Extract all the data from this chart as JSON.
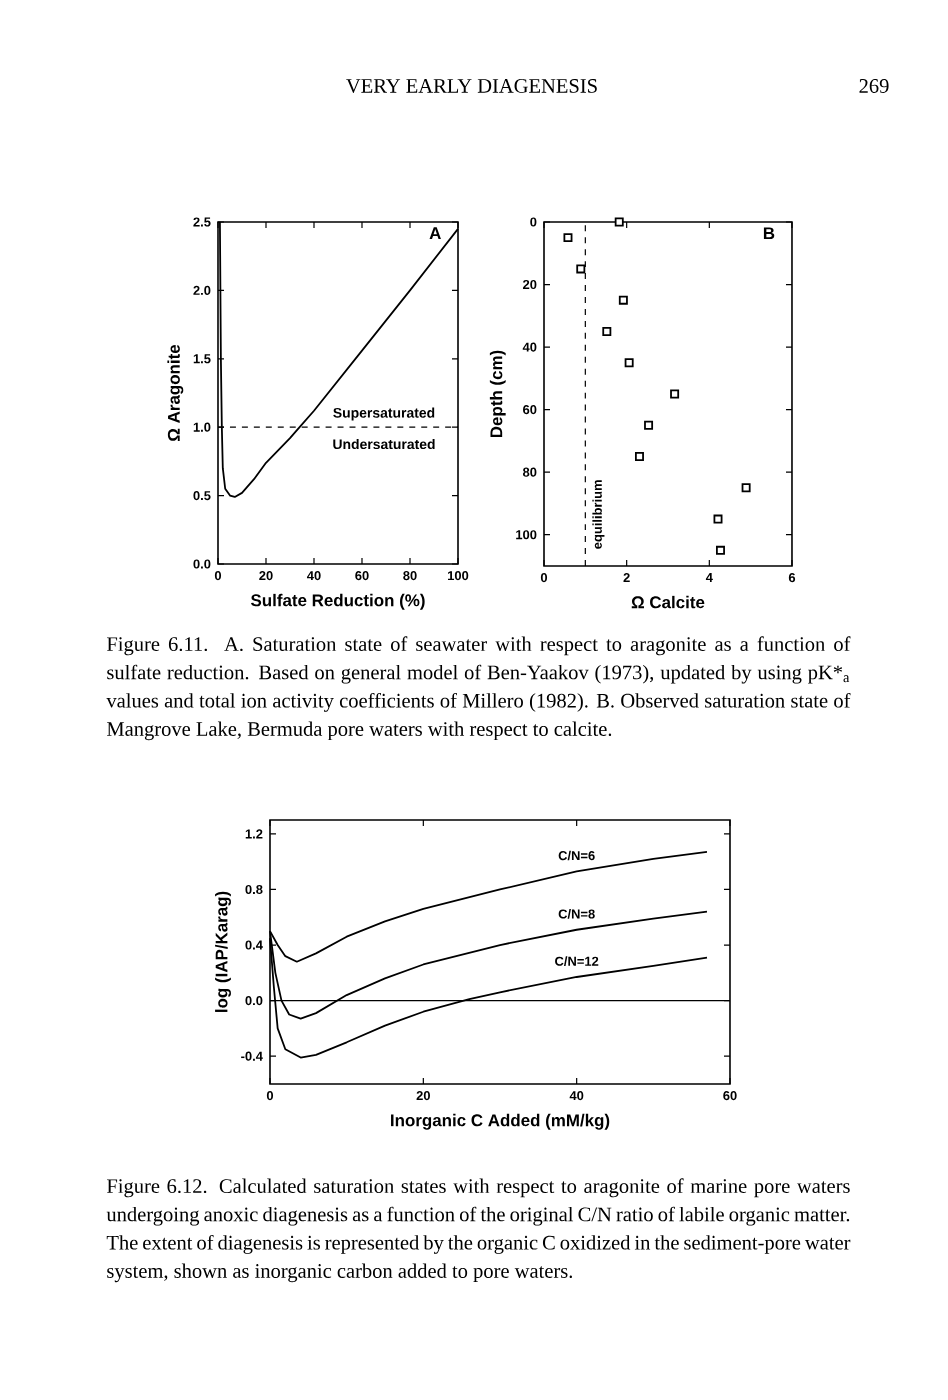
{
  "chart_data": [
    {
      "type": "line",
      "title": "A",
      "xlabel": "Sulfate Reduction (%)",
      "ylabel": "Ω Aragonite",
      "color": "#000000",
      "marker": "none",
      "line_style": "solid",
      "grid": false,
      "legend": false,
      "x": [
        0.8,
        1.2,
        1.6,
        2,
        3,
        5,
        7,
        10,
        15,
        20,
        30,
        34,
        40,
        60,
        80,
        100
      ],
      "values": [
        2.5,
        1.5,
        1.0,
        0.7,
        0.55,
        0.5,
        0.49,
        0.52,
        0.62,
        0.74,
        0.92,
        1.0,
        1.12,
        1.56,
        2.0,
        2.45
      ],
      "xlim": [
        0,
        100
      ],
      "xticks": [
        0,
        20,
        40,
        60,
        80,
        100
      ],
      "ylim": [
        0,
        2.5
      ],
      "yticks": [
        {
          "value": 0,
          "label": "0.0"
        },
        0.5,
        {
          "value": 1,
          "label": "1.0"
        },
        1.5,
        {
          "value": 2,
          "label": "2.0"
        },
        2.5
      ],
      "ref_lines": [
        {
          "axis": "y",
          "value": 1,
          "line_style": "dashed",
          "color": "#000000"
        }
      ],
      "annotations": [
        "VERY EARLY DIAGENESIS",
        "269",
        "Supersaturated",
        "Undersaturated"
      ]
    },
    {
      "type": "scatter",
      "title": "B",
      "xlabel": "Ω Calcite",
      "ylabel": "Depth (cm)",
      "color": "#000000",
      "marker": "square",
      "grid": false,
      "legend": false,
      "x": [
        1.82,
        0.58,
        0.89,
        1.92,
        1.52,
        2.06,
        3.16,
        2.53,
        2.31,
        4.89,
        4.21,
        4.27
      ],
      "values": [
        0,
        5,
        15,
        25,
        35,
        45,
        55,
        65,
        75,
        85,
        95,
        105
      ],
      "xlim": [
        0,
        6
      ],
      "xticks": [
        0,
        2,
        4,
        6
      ],
      "ylim": [
        110,
        0
      ],
      "yticks": [
        0,
        20,
        40,
        60,
        80,
        100
      ],
      "ref_lines": [
        {
          "axis": "x",
          "value": 1,
          "label": "equilibrium",
          "line_style": "dashed",
          "color": "#000000"
        }
      ],
      "annotations": [
        "Figure 6.11. A. Saturation state of seawater with respect to aragonite as a function of sulfate reduction. Based on general model of Ben-Yaakov (1973), updated by using pK*$_{a}$ values and total ion activity coefficients of Millero (1982). B. Observed saturation state of Mangrove Lake, Bermuda pore waters with respect to calcite."
      ]
    },
    {
      "type": "line",
      "xlabel": "Inorganic C Added (mM/kg)",
      "ylabel": "log (IAP/Karag)",
      "marker": "none",
      "line_style": "solid",
      "grid": false,
      "legend": false,
      "series": [
        {
          "name": "C/N=6",
          "color": "#000000",
          "x": [
            0,
            1,
            2,
            3.5,
            6,
            10,
            15,
            20,
            30,
            40,
            50,
            57
          ],
          "values": [
            0.5,
            0.4,
            0.32,
            0.28,
            0.34,
            0.46,
            0.57,
            0.66,
            0.8,
            0.93,
            1.02,
            1.07
          ]
        },
        {
          "name": "C/N=8",
          "color": "#000000",
          "x": [
            0,
            0.7,
            1.5,
            2.5,
            4,
            6,
            10,
            15,
            20,
            30,
            40,
            50,
            57
          ],
          "values": [
            0.5,
            0.2,
            0.0,
            -0.1,
            -0.13,
            -0.09,
            0.04,
            0.16,
            0.26,
            0.4,
            0.51,
            0.59,
            0.64
          ]
        },
        {
          "name": "C/N=12",
          "color": "#000000",
          "x": [
            0,
            0.5,
            1,
            2,
            4,
            6,
            10,
            15,
            20,
            26,
            30,
            40,
            50,
            57
          ],
          "values": [
            0.45,
            0.1,
            -0.2,
            -0.35,
            -0.41,
            -0.39,
            -0.3,
            -0.18,
            -0.08,
            0.01,
            0.06,
            0.17,
            0.25,
            0.31
          ]
        }
      ],
      "xlim": [
        0,
        60
      ],
      "xticks": [
        0,
        20,
        40,
        60
      ],
      "ylim": [
        -0.6,
        1.3
      ],
      "yticks": [
        -0.4,
        {
          "value": 0,
          "label": "0.0"
        },
        0.4,
        0.8,
        1.2
      ],
      "ref_lines": [
        {
          "axis": "y",
          "value": 0,
          "line_style": "solid",
          "color": "#000000"
        }
      ],
      "annotations": [
        "Figure 6.12. Calculated saturation states with respect to aragonite of marine pore waters undergoing anoxic diagenesis as a function of the original C/N ratio of labile organic matter. The extent of diagenesis is represented by the organic C oxidized in the sediment-pore water system, shown as inorganic carbon added to pore waters."
      ]
    }
  ]
}
